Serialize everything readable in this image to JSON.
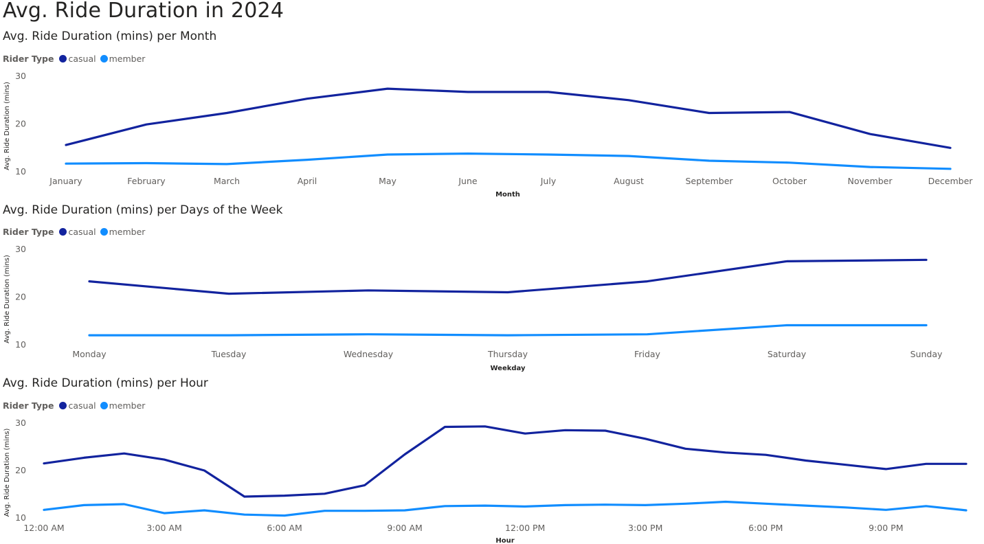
{
  "page_title": "Avg. Ride Duration in 2024",
  "colors": {
    "casual": "#12239e",
    "member": "#118dff"
  },
  "legend": {
    "title": "Rider Type",
    "items": [
      "casual",
      "member"
    ]
  },
  "chart_data": [
    {
      "type": "line",
      "title": "Avg. Ride Duration (mins) per Month",
      "xlabel": "Month",
      "ylabel": "Avg. Ride Duration (mins)",
      "ylim": [
        10,
        30
      ],
      "yticks": [
        10,
        20,
        30
      ],
      "legend_position": "top-left",
      "categories": [
        "January",
        "February",
        "March",
        "April",
        "May",
        "June",
        "July",
        "August",
        "September",
        "October",
        "November",
        "December"
      ],
      "series": [
        {
          "name": "casual",
          "values": [
            15.6,
            19.9,
            22.3,
            25.3,
            27.4,
            26.7,
            26.7,
            25.0,
            22.3,
            22.5,
            17.9,
            15.0
          ]
        },
        {
          "name": "member",
          "values": [
            11.7,
            11.8,
            11.6,
            12.5,
            13.6,
            13.8,
            13.6,
            13.3,
            12.3,
            11.9,
            11.0,
            10.6
          ]
        }
      ]
    },
    {
      "type": "line",
      "title": "Avg. Ride Duration (mins) per Days of the Week",
      "xlabel": "Weekday",
      "ylabel": "Avg. Ride Duration (mins)",
      "ylim": [
        10,
        30
      ],
      "yticks": [
        10,
        20,
        30
      ],
      "legend_position": "top-left",
      "categories": [
        "Monday",
        "Tuesday",
        "Wednesday",
        "Thursday",
        "Friday",
        "Saturday",
        "Sunday"
      ],
      "series": [
        {
          "name": "casual",
          "values": [
            23.3,
            20.7,
            21.4,
            21.0,
            23.3,
            27.5,
            27.8
          ]
        },
        {
          "name": "member",
          "values": [
            12.0,
            12.0,
            12.2,
            12.0,
            12.2,
            14.1,
            14.1
          ]
        }
      ]
    },
    {
      "type": "line",
      "title": "Avg. Ride Duration (mins) per Hour",
      "xlabel": "Hour",
      "ylabel": "Avg. Ride Duration (mins)",
      "ylim": [
        10,
        30
      ],
      "yticks": [
        10,
        20,
        30
      ],
      "legend_position": "top-left",
      "categories": [
        "12:00 AM",
        "1:00 AM",
        "2:00 AM",
        "3:00 AM",
        "4:00 AM",
        "5:00 AM",
        "6:00 AM",
        "7:00 AM",
        "8:00 AM",
        "9:00 AM",
        "10:00 AM",
        "11:00 AM",
        "12:00 PM",
        "1:00 PM",
        "2:00 PM",
        "3:00 PM",
        "4:00 PM",
        "5:00 PM",
        "6:00 PM",
        "7:00 PM",
        "8:00 PM",
        "9:00 PM",
        "10:00 PM",
        "11:00 PM"
      ],
      "tick_labels": [
        "12:00 AM",
        "3:00 AM",
        "6:00 AM",
        "9:00 AM",
        "12:00 PM",
        "3:00 PM",
        "6:00 PM",
        "9:00 PM"
      ],
      "series": [
        {
          "name": "casual",
          "values": [
            21.5,
            22.7,
            23.6,
            22.3,
            20.0,
            14.5,
            14.7,
            15.1,
            16.9,
            23.4,
            29.2,
            29.3,
            27.8,
            28.5,
            28.4,
            26.7,
            24.6,
            23.8,
            23.3,
            22.1,
            21.2,
            20.3,
            21.4,
            21.4
          ]
        },
        {
          "name": "member",
          "values": [
            11.7,
            12.7,
            12.9,
            11.0,
            11.6,
            10.7,
            10.5,
            11.5,
            11.5,
            11.6,
            12.5,
            12.6,
            12.4,
            12.7,
            12.8,
            12.7,
            13.0,
            13.4,
            13.0,
            12.6,
            12.2,
            11.7,
            12.5,
            11.6
          ]
        }
      ]
    }
  ]
}
